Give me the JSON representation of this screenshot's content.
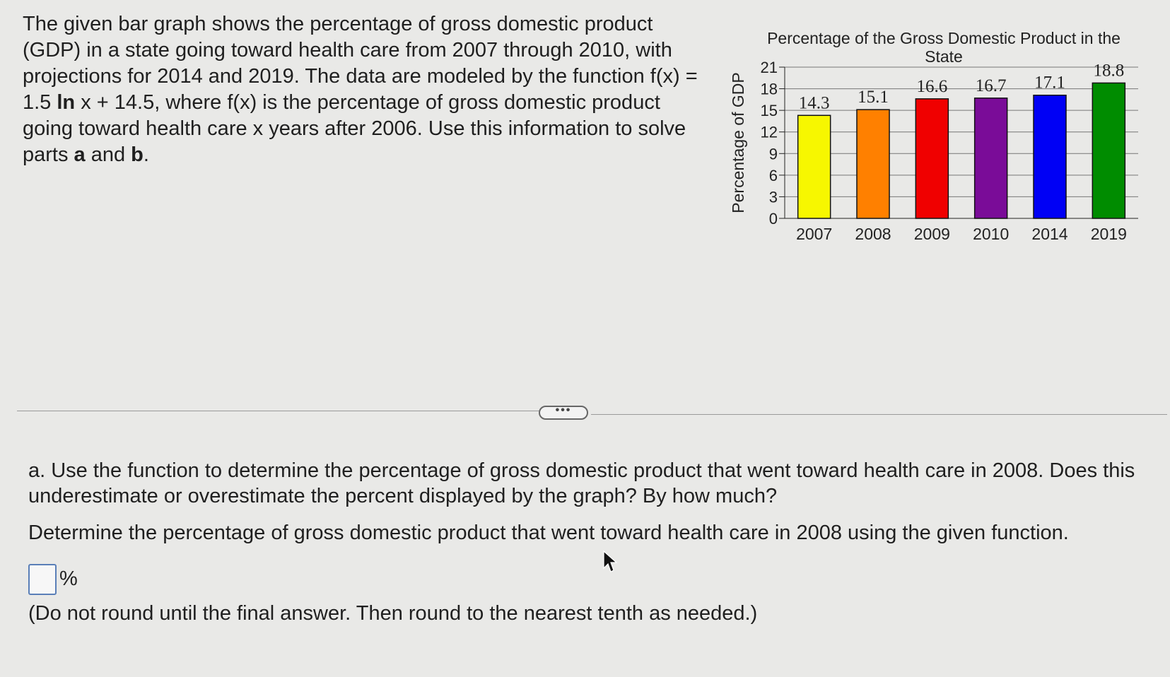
{
  "intro": {
    "part1": "The given bar graph shows the percentage of gross domestic product (GDP) in a state going toward health care from 2007 through 2010, with projections for 2014 and 2019. The data are modeled by the function f(x) = 1.5 ",
    "ln": "ln",
    "part2": " x + 14.5, where f(x) is the percentage of gross domestic product going toward health care x years after 2006. Use this information to solve parts ",
    "a": "a",
    "and": " and ",
    "b": "b",
    "end": "."
  },
  "more_button": "•••",
  "question": {
    "text": "a. Use the function to determine the percentage of gross domestic product that went toward health care in 2008. Does this underestimate or overestimate the percent displayed by the graph? By how much?"
  },
  "instruction": "Determine the percentage of gross domestic product that went toward health care in 2008 using the given function.",
  "answer": {
    "value": "",
    "unit": "%"
  },
  "note": "(Do not round until the final answer. Then round to the nearest tenth as needed.)",
  "chart_data": {
    "type": "bar",
    "title": "Percentage of the Gross Domestic Product in the State",
    "title_lines": [
      "Percentage of the Gross Domestic Product in the",
      "State"
    ],
    "ylabel": "Percentage of GDP",
    "xlabel": "",
    "categories": [
      "2007",
      "2008",
      "2009",
      "2010",
      "2014",
      "2019"
    ],
    "values": [
      14.3,
      15.1,
      16.6,
      16.7,
      17.1,
      18.8
    ],
    "data_labels": [
      "14.3",
      "15.1",
      "16.6",
      "16.7",
      "17.1",
      "18.8"
    ],
    "colors": [
      "#f7f700",
      "#ff8000",
      "#f00000",
      "#7a0c98",
      "#0000f5",
      "#008c00"
    ],
    "yticks": [
      0,
      3,
      6,
      9,
      12,
      15,
      18,
      21
    ],
    "ylim": [
      0,
      21
    ],
    "grid": true,
    "legend": "none"
  }
}
